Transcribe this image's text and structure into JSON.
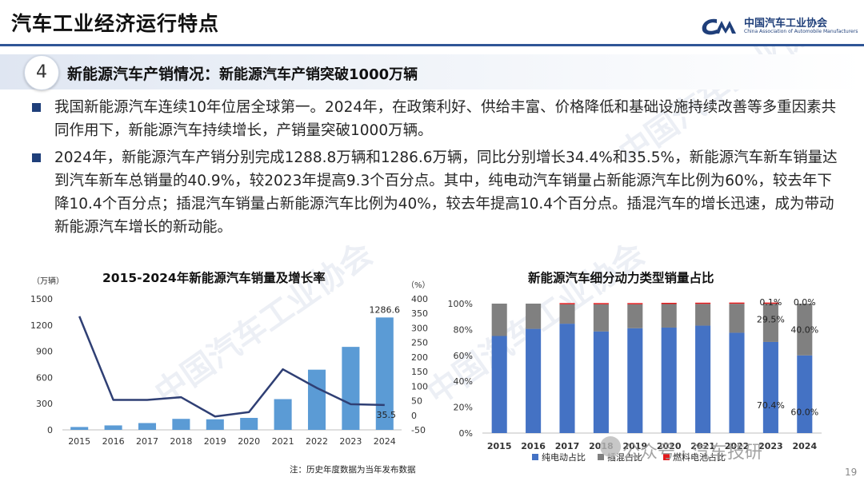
{
  "header": {
    "title": "汽车工业经济运行特点",
    "logo_cn": "中国汽车工业协会",
    "logo_en": "China Association of Automobile Manufacturers"
  },
  "section": {
    "number": "4",
    "title": "新能源汽车产销情况：",
    "subtitle": "新能源汽车产销突破1000万辆"
  },
  "bullets": [
    "我国新能源汽车连续10年位居全球第一。2024年，在政策利好、供给丰富、价格降低和基础设施持续改善等多重因素共同作用下，新能源汽车持续增长，产销量突破1000万辆。",
    "2024年，新能源汽车产销分别完成1288.8万辆和1286.6万辆，同比分别增长34.4%和35.5%，新能源汽车新车销量达到汽车新车总销量的40.9%，较2023年提高9.3个百分点。其中，纯电动汽车销量占新能源汽车比例为60%，较去年下降10.4个百分点；插混汽车销量占新能源汽车比例为40%，较去年提高10.4个百分点。插混汽车的增长迅速，成为带动新能源汽车增长的新动能。"
  ],
  "footnote": "注：历史年度数据为当年发布数据",
  "page_number": "19",
  "watermark": "公众号 · 汽车技研",
  "chart_data": [
    {
      "type": "bar",
      "title": "2015-2024年新能源汽车销量及增长率",
      "left_unit": "（万辆）",
      "right_unit": "（%）",
      "categories": [
        "2015",
        "2016",
        "2017",
        "2018",
        "2019",
        "2020",
        "2021",
        "2022",
        "2023",
        "2024"
      ],
      "ylim": [
        0,
        1500
      ],
      "yticks": [
        "0",
        "300",
        "600",
        "900",
        "1200",
        "1500"
      ],
      "y2lim": [
        -50,
        400
      ],
      "y2ticks": [
        "-50",
        "0",
        "50",
        "100",
        "150",
        "200",
        "250",
        "300",
        "350",
        "400"
      ],
      "series": [
        {
          "kind": "bar",
          "axis": "left",
          "color": "#5b9bd5",
          "values": [
            33,
            51,
            78,
            126,
            121,
            137,
            352,
            689,
            950,
            1286.6
          ],
          "labels": [
            "",
            "",
            "",
            "",
            "",
            "",
            "",
            "",
            "",
            "1286.6"
          ]
        },
        {
          "kind": "line",
          "axis": "right",
          "color": "#2f3f74",
          "values": [
            340,
            53,
            53,
            62,
            -4,
            11,
            158,
            94,
            38,
            35.5
          ],
          "labels": [
            "",
            "",
            "",
            "",
            "",
            "",
            "",
            "",
            "",
            "35.5"
          ]
        }
      ]
    },
    {
      "type": "bar",
      "stacked": true,
      "title": "新能源汽车细分动力类型销量占比",
      "categories": [
        "2015",
        "2016",
        "2017",
        "2018",
        "2019",
        "2020",
        "2021",
        "2022",
        "2023",
        "2024"
      ],
      "ylim": [
        0,
        100
      ],
      "yticks": [
        "0%",
        "20%",
        "40%",
        "60%",
        "80%",
        "100%"
      ],
      "series": [
        {
          "name": "纯电动占比",
          "color": "#4472c4",
          "values": [
            75,
            80.5,
            84.5,
            78.5,
            81,
            81.5,
            83,
            77.5,
            70.4,
            60.0
          ],
          "labels": [
            "",
            "",
            "",
            "",
            "",
            "",
            "",
            "",
            "70.4%",
            "60.0%"
          ]
        },
        {
          "name": "插混占比",
          "color": "#808080",
          "values": [
            25,
            19.5,
            15,
            21,
            18.5,
            18.2,
            16.8,
            22.4,
            29.5,
            40.0
          ],
          "labels": [
            "",
            "",
            "",
            "",
            "",
            "",
            "",
            "",
            "29.5%",
            "40.0%"
          ]
        },
        {
          "name": "燃料电池占比",
          "color": "#e31a1c",
          "values": [
            0,
            0,
            0.5,
            0.5,
            0.5,
            0.3,
            0.2,
            0.1,
            0.1,
            0.0
          ],
          "labels": [
            "",
            "",
            "",
            "",
            "",
            "",
            "",
            "",
            "0.1%",
            "0.0%"
          ]
        }
      ]
    }
  ]
}
